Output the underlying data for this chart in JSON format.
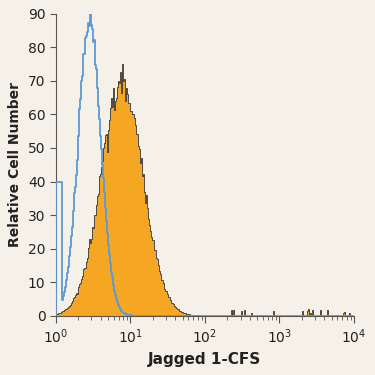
{
  "title": "",
  "xlabel": "Jagged 1-CFS",
  "ylabel": "Relative Cell Number",
  "xlim_log": [
    1,
    10000
  ],
  "ylim": [
    0,
    90
  ],
  "yticks": [
    0,
    10,
    20,
    30,
    40,
    50,
    60,
    70,
    80,
    90
  ],
  "background_color": "#f5f0e8",
  "blue_color": "#5b9bd5",
  "orange_color": "#f5a623",
  "orange_edge_color": "#333333",
  "figsize": [
    3.75,
    3.75
  ],
  "dpi": 100,
  "blue_peak_height": 90,
  "orange_peak_height": 75,
  "blue_log_mean": 0.45,
  "blue_log_std": 0.15,
  "orange_log_mean": 0.88,
  "orange_log_std": 0.28,
  "n_bins": 300
}
